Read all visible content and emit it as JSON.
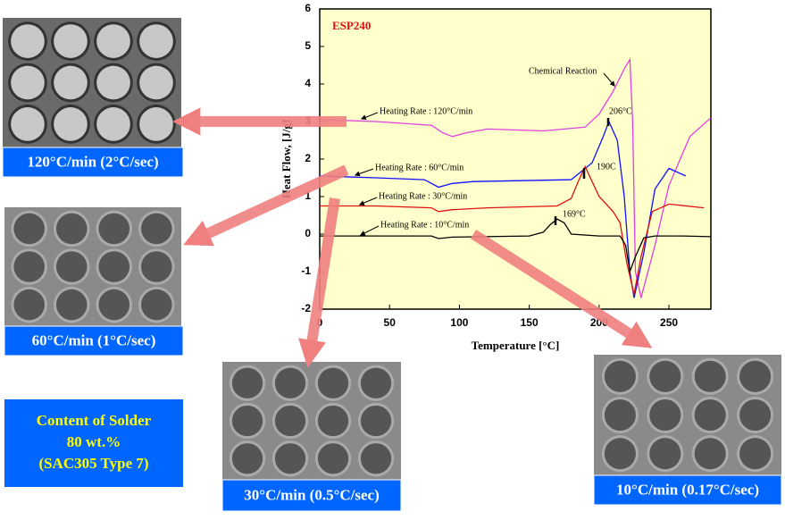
{
  "chart_data": {
    "type": "line",
    "title": "ESP240",
    "x_label": "Temperature [°C]",
    "y_label": "Heat Flow, [J/g]",
    "xlim": [
      0,
      280
    ],
    "xticks": [
      0,
      50,
      100,
      150,
      200,
      250
    ],
    "ylim": [
      -2,
      6
    ],
    "yticks": [
      -2,
      -1,
      0,
      1,
      2,
      3,
      4,
      5,
      6
    ],
    "background": "#ffffcc",
    "series": [
      {
        "name": "Heating Rate : 120°C/min",
        "color": "#e040e0",
        "x": [
          0,
          40,
          80,
          88,
          95,
          105,
          120,
          160,
          190,
          200,
          210,
          218,
          222,
          224,
          226,
          230,
          240,
          250,
          265,
          280
        ],
        "values": [
          3.05,
          3.0,
          2.9,
          2.7,
          2.6,
          2.7,
          2.8,
          2.75,
          2.85,
          3.2,
          3.8,
          4.4,
          4.65,
          3.0,
          -1.0,
          -1.7,
          -0.3,
          1.3,
          2.6,
          3.1
        ]
      },
      {
        "name": "Heating Rate : 60°C/min",
        "color": "#1010ff",
        "x": [
          0,
          40,
          75,
          85,
          95,
          110,
          180,
          195,
          203,
          207,
          213,
          218,
          222,
          225,
          232,
          240,
          250,
          262
        ],
        "values": [
          1.55,
          1.5,
          1.45,
          1.25,
          1.35,
          1.4,
          1.45,
          1.9,
          2.6,
          3.0,
          2.5,
          1.0,
          -1.0,
          -1.7,
          -0.5,
          1.2,
          1.75,
          1.55
        ]
      },
      {
        "name": "Heating Rate : 30°C/min",
        "color": "#e01010",
        "x": [
          0,
          40,
          80,
          85,
          95,
          120,
          170,
          180,
          185,
          190,
          195,
          200,
          210,
          215,
          220,
          225,
          230,
          238,
          250,
          275
        ],
        "values": [
          0.75,
          0.75,
          0.7,
          0.6,
          0.65,
          0.7,
          0.75,
          0.95,
          1.4,
          1.8,
          1.4,
          1.0,
          0.6,
          0.3,
          -0.8,
          -1.6,
          -0.6,
          0.6,
          0.8,
          0.7
        ]
      },
      {
        "name": "Heating Rate : 10°C/min",
        "color": "#000000",
        "x": [
          0,
          40,
          80,
          85,
          95,
          150,
          160,
          165,
          170,
          175,
          180,
          200,
          215,
          219,
          222,
          226,
          232,
          240,
          260,
          280
        ],
        "values": [
          -0.05,
          -0.05,
          -0.05,
          -0.12,
          -0.08,
          -0.05,
          0.05,
          0.25,
          0.4,
          0.3,
          0.0,
          -0.05,
          -0.05,
          -0.3,
          -1.0,
          -0.6,
          -0.1,
          -0.05,
          -0.05,
          -0.07
        ]
      }
    ],
    "annotations": [
      "206°C",
      "190C",
      "169°C",
      "Chemical Reaction"
    ]
  },
  "panels": [
    {
      "caption": "120°C/min (2°C/sec)"
    },
    {
      "caption": "60°C/min (1°C/sec)"
    },
    {
      "caption": "30°C/min (0.5°C/sec)"
    },
    {
      "caption": "10°C/min (0.17°C/sec)"
    }
  ],
  "note": {
    "lines": [
      "Content of Solder",
      "80 wt.%",
      "(SAC305 Type 7)"
    ]
  }
}
